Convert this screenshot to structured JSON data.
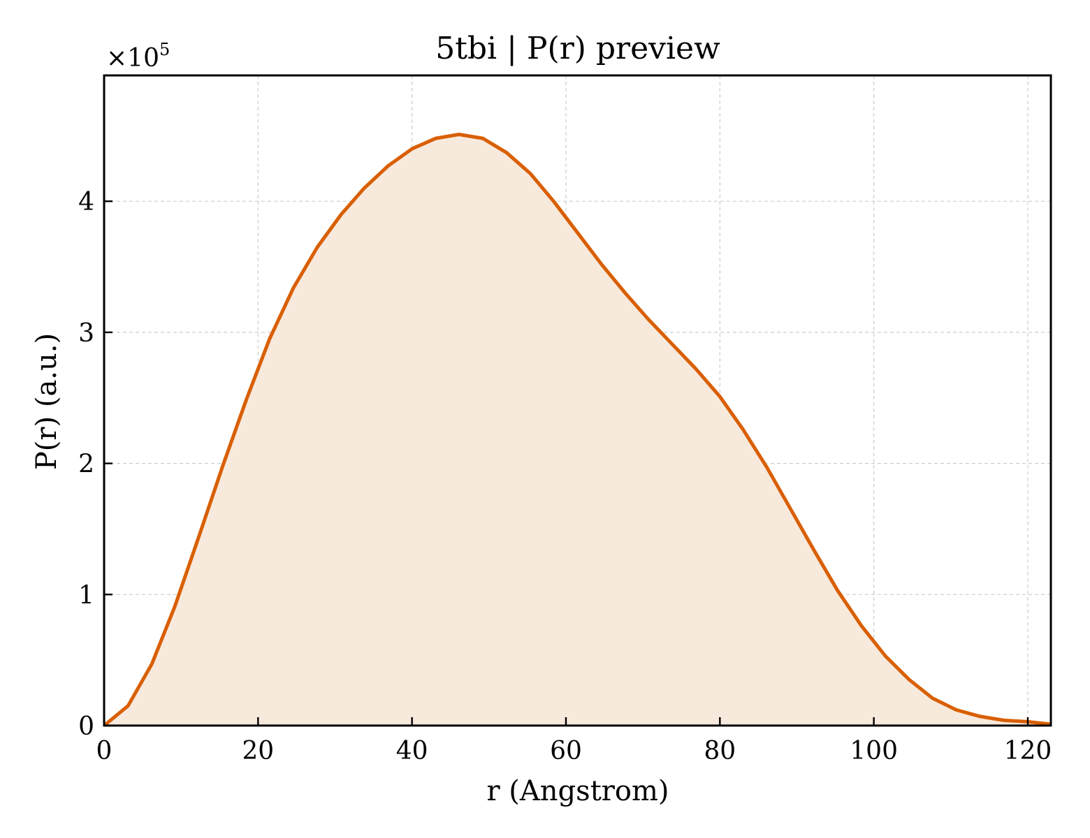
{
  "chart_data": {
    "type": "area",
    "title": "5tbi | P(r) preview",
    "xlabel": "r (Angstrom)",
    "ylabel": "P(r) (a.u.)",
    "y_multiplier_label": "×10",
    "y_multiplier_exponent": "5",
    "xlim": [
      0,
      123
    ],
    "ylim": [
      0,
      4.96
    ],
    "x_ticks": [
      0,
      20,
      40,
      60,
      80,
      100,
      120
    ],
    "y_ticks": [
      0,
      1,
      2,
      3,
      4
    ],
    "grid": true,
    "colors": {
      "line": "#d95f02",
      "fill": "#f8e9dd",
      "grid": "#cccccc",
      "axes": "#000000"
    },
    "series": [
      {
        "x": [
          0,
          3.1,
          6.2,
          9.2,
          12.3,
          15.4,
          18.5,
          21.5,
          24.6,
          27.7,
          30.8,
          33.8,
          36.9,
          40.0,
          43.1,
          46.1,
          49.2,
          52.3,
          55.4,
          58.4,
          61.5,
          64.6,
          67.7,
          70.7,
          73.8,
          76.9,
          80.0,
          83.0,
          86.1,
          89.2,
          92.3,
          95.3,
          98.4,
          101.5,
          104.6,
          107.6,
          110.7,
          113.8,
          116.9,
          119.9,
          123.0
        ],
        "y": [
          0.0,
          0.15,
          0.47,
          0.91,
          1.44,
          1.98,
          2.49,
          2.95,
          3.34,
          3.65,
          3.9,
          4.1,
          4.27,
          4.4,
          4.48,
          4.51,
          4.48,
          4.37,
          4.21,
          4.0,
          3.76,
          3.52,
          3.3,
          3.1,
          2.91,
          2.72,
          2.51,
          2.26,
          1.97,
          1.65,
          1.33,
          1.03,
          0.76,
          0.53,
          0.35,
          0.21,
          0.12,
          0.07,
          0.04,
          0.03,
          0.01
        ]
      }
    ]
  }
}
